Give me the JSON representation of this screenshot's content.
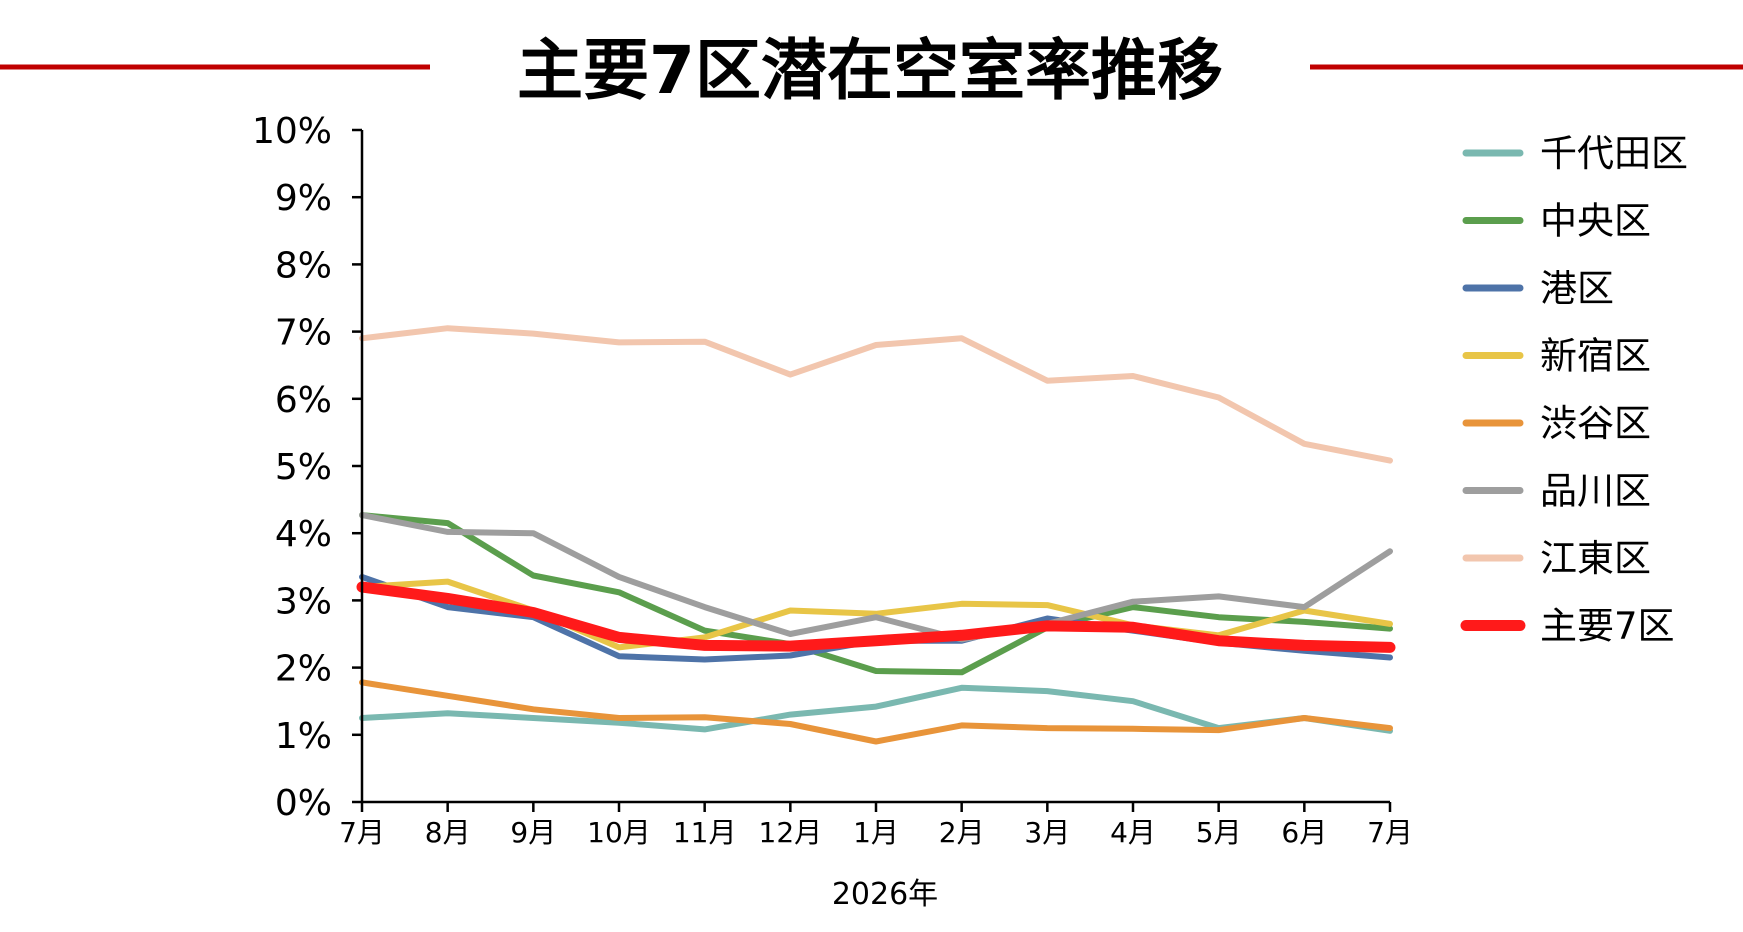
{
  "chart_data": {
    "type": "line",
    "title": "主要7区潜在空室率推移",
    "xlabel": "2026年",
    "ylabel": "",
    "categories": [
      "7月",
      "8月",
      "9月",
      "10月",
      "11月",
      "12月",
      "1月",
      "2月",
      "3月",
      "4月",
      "5月",
      "6月",
      "7月"
    ],
    "y_ticks": [
      "0%",
      "1%",
      "2%",
      "3%",
      "4%",
      "5%",
      "6%",
      "7%",
      "8%",
      "9%",
      "10%"
    ],
    "ylim": [
      0,
      10
    ],
    "grid": false,
    "legend_position": "right",
    "accent_color": "#C00000",
    "series": [
      {
        "name": "千代田区",
        "color": "#7AB8B0",
        "values": [
          1.25,
          1.32,
          1.25,
          1.18,
          1.08,
          1.3,
          1.42,
          1.7,
          1.65,
          1.5,
          1.1,
          1.25,
          1.06
        ]
      },
      {
        "name": "中央区",
        "color": "#5B9E4D",
        "values": [
          4.27,
          4.15,
          3.37,
          3.12,
          2.55,
          2.35,
          1.95,
          1.93,
          2.6,
          2.9,
          2.75,
          2.68,
          2.58
        ]
      },
      {
        "name": "港区",
        "color": "#4E73A8",
        "values": [
          3.35,
          2.9,
          2.75,
          2.17,
          2.12,
          2.18,
          2.4,
          2.4,
          2.73,
          2.55,
          2.37,
          2.25,
          2.15
        ]
      },
      {
        "name": "新宿区",
        "color": "#E8C547",
        "values": [
          3.2,
          3.28,
          2.85,
          2.3,
          2.45,
          2.85,
          2.8,
          2.95,
          2.93,
          2.63,
          2.48,
          2.85,
          2.65
        ]
      },
      {
        "name": "渋谷区",
        "color": "#E8943A",
        "values": [
          1.78,
          1.58,
          1.38,
          1.25,
          1.26,
          1.16,
          0.9,
          1.14,
          1.1,
          1.09,
          1.07,
          1.25,
          1.1
        ]
      },
      {
        "name": "品川区",
        "color": "#9E9E9E",
        "values": [
          4.27,
          4.02,
          4.0,
          3.35,
          2.9,
          2.5,
          2.75,
          2.42,
          2.65,
          2.98,
          3.06,
          2.9,
          3.73
        ]
      },
      {
        "name": "江東区",
        "color": "#F2C6AE",
        "values": [
          6.9,
          7.05,
          6.97,
          6.84,
          6.85,
          6.36,
          6.8,
          6.9,
          6.27,
          6.34,
          6.02,
          5.33,
          5.08
        ]
      },
      {
        "name": "主要7区",
        "color": "#FF1A1A",
        "values": [
          3.2,
          3.03,
          2.82,
          2.45,
          2.33,
          2.32,
          2.4,
          2.48,
          2.62,
          2.6,
          2.4,
          2.33,
          2.3
        ]
      }
    ]
  }
}
